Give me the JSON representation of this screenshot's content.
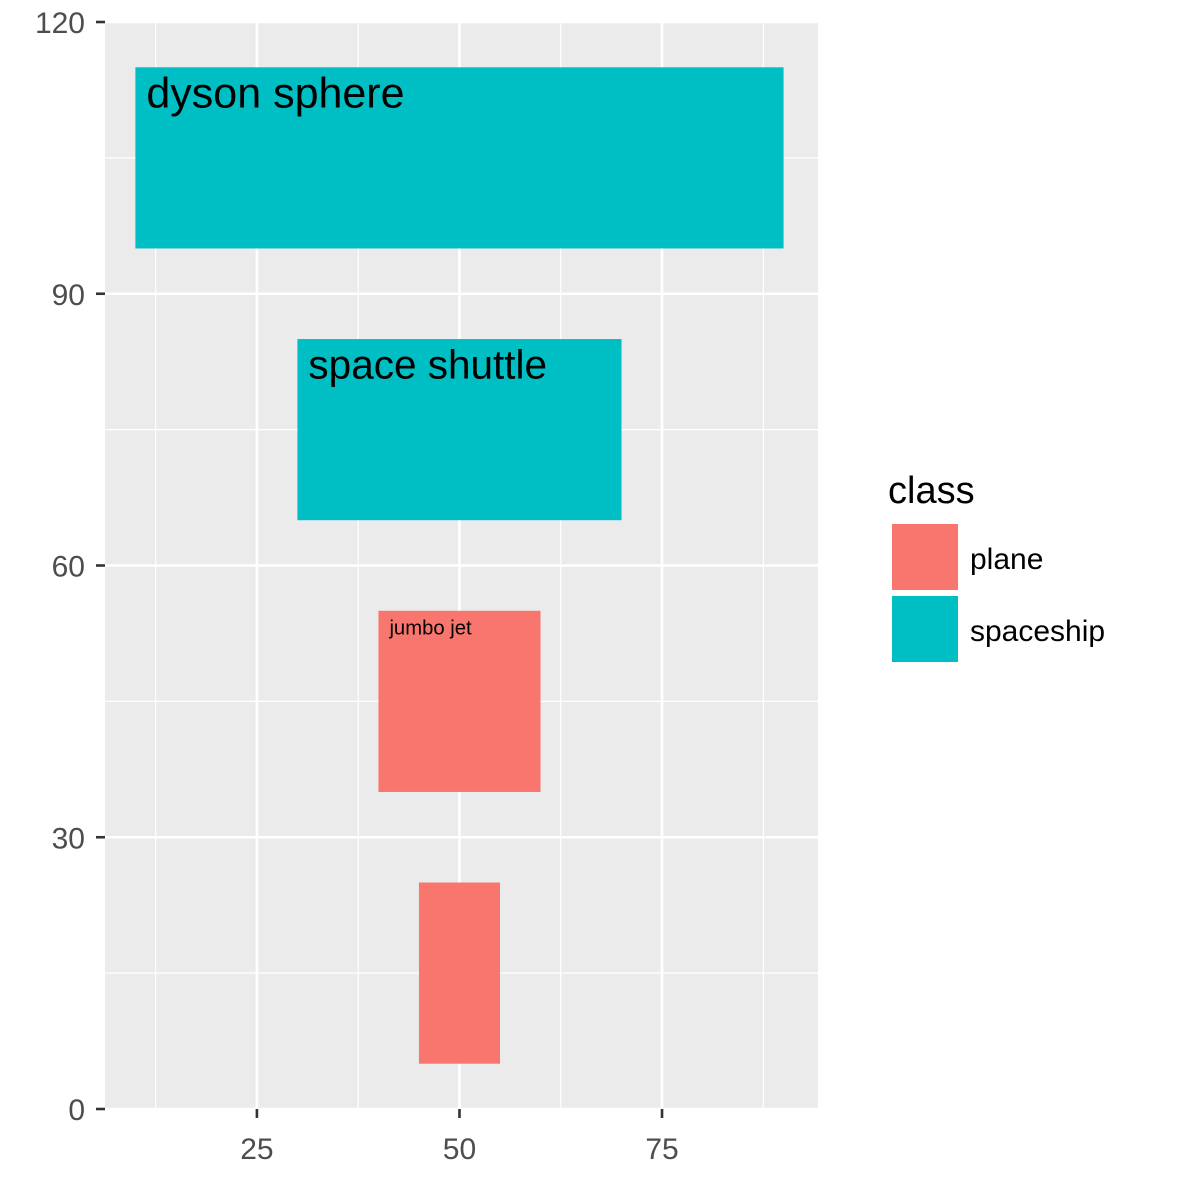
{
  "chart_data": {
    "type": "bar",
    "xlim": [
      6.25,
      94.25
    ],
    "ylim": [
      0,
      120
    ],
    "x_ticks": [
      25,
      50,
      75
    ],
    "y_ticks": [
      0,
      30,
      60,
      90,
      120
    ],
    "x_tick_labels": [
      "25",
      "50",
      "75"
    ],
    "y_tick_labels": [
      "0",
      "30",
      "60",
      "90",
      "120"
    ],
    "grid": true,
    "colors": {
      "plane": "#F8766D",
      "spaceship": "#00BFC4",
      "panel": "#EBEBEB",
      "grid": "#FFFFFF"
    },
    "rects": [
      {
        "class": "plane",
        "xmin": 45,
        "xmax": 55,
        "ymin": 5,
        "ymax": 25,
        "label": ""
      },
      {
        "class": "plane",
        "xmin": 40,
        "xmax": 60,
        "ymin": 35,
        "ymax": 55,
        "label": "jumbo jet"
      },
      {
        "class": "spaceship",
        "xmin": 30,
        "xmax": 70,
        "ymin": 65,
        "ymax": 85,
        "label": "space shuttle"
      },
      {
        "class": "spaceship",
        "xmin": 10,
        "xmax": 90,
        "ymin": 95,
        "ymax": 115,
        "label": "dyson sphere"
      }
    ],
    "legend": {
      "title": "class",
      "position": "right",
      "entries": [
        {
          "label": "plane",
          "color": "#F8766D"
        },
        {
          "label": "spaceship",
          "color": "#00BFC4"
        }
      ]
    }
  }
}
